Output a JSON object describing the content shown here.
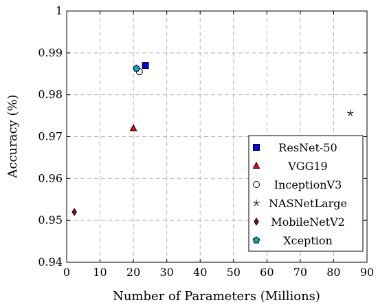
{
  "chart_data": {
    "type": "scatter",
    "title": "",
    "xlabel": "Number of Parameters (Millions)",
    "ylabel": "Accuracy (%)",
    "xlim": [
      0,
      90
    ],
    "ylim": [
      0.94,
      1.0
    ],
    "xticks": [
      "0",
      "10",
      "20",
      "30",
      "40",
      "50",
      "60",
      "70",
      "80",
      "90"
    ],
    "yticks": [
      "0.94",
      "0.95",
      "0.96",
      "0.97",
      "0.98",
      "0.99",
      "1"
    ],
    "grid": true,
    "legend_position": "bottom-right",
    "series": [
      {
        "name": "ResNet-50",
        "marker": "square",
        "color": "#0000ff",
        "x": 23.6,
        "y": 0.987
      },
      {
        "name": "VGG19",
        "marker": "triangle",
        "color": "#ff0000",
        "x": 20.0,
        "y": 0.972
      },
      {
        "name": "InceptionV3",
        "marker": "circle",
        "color": "#ffffff",
        "x": 21.8,
        "y": 0.9855
      },
      {
        "name": "NASNetLarge",
        "marker": "star",
        "color": "#000000",
        "x": 85.0,
        "y": 0.9756
      },
      {
        "name": "MobileNetV2",
        "marker": "diamond",
        "color": "#a0002a",
        "x": 2.3,
        "y": 0.952
      },
      {
        "name": "Xception",
        "marker": "pentagon",
        "color": "#00aacc",
        "x": 20.9,
        "y": 0.9863
      }
    ]
  }
}
